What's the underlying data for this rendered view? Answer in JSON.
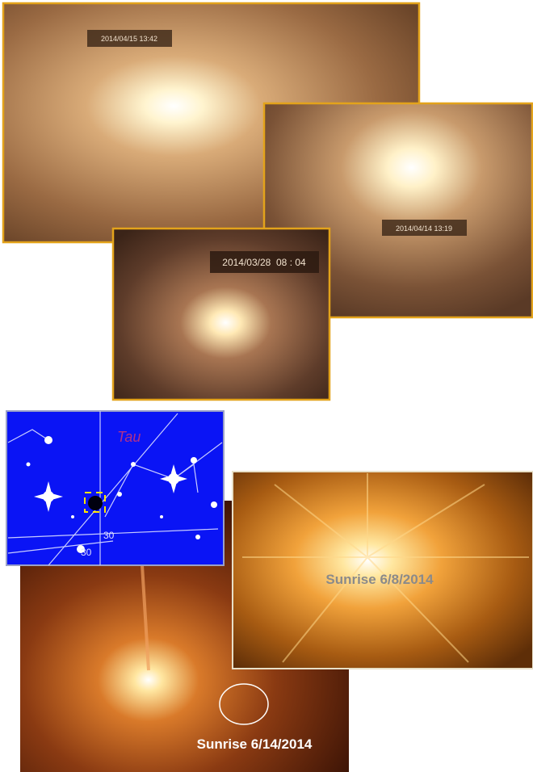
{
  "photos": [
    {
      "timestamp": "2014/04/15 13:42"
    },
    {
      "timestamp": "2014/04/14 13:19"
    },
    {
      "timestamp": "2014/03/28  08 : 04"
    }
  ],
  "star_map": {
    "constellation": "Tau",
    "labels": [
      "30",
      "30"
    ]
  },
  "captions": [
    "Sunrise 6/8/2014",
    "Sunrise 6/14/2014"
  ]
}
